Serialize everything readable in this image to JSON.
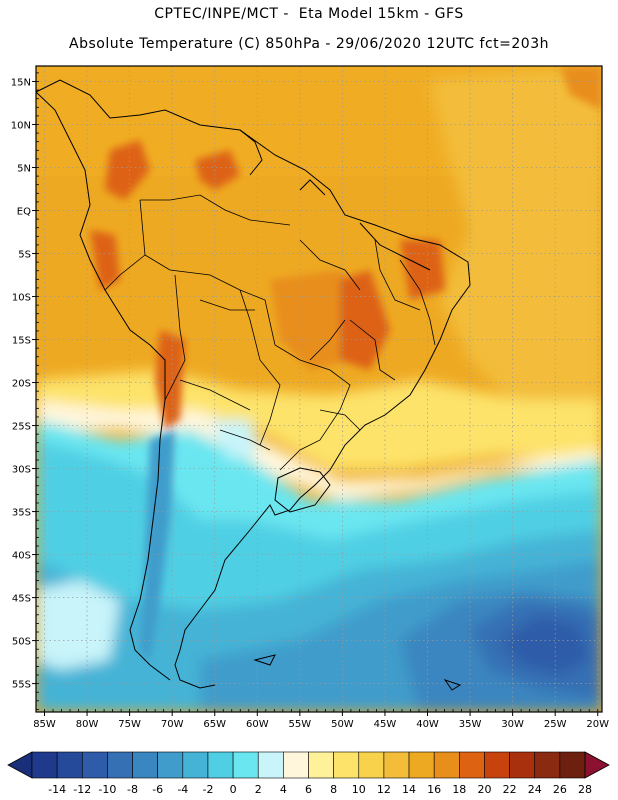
{
  "header": {
    "line1": "CPTEC/INPE/MCT -  Eta Model 15km - GFS",
    "line2": "Absolute Temperature (C) 850hPa - 29/06/2020 12UTC fct=203h"
  },
  "map": {
    "lat_labels": [
      "15N",
      "10N",
      "5N",
      "EQ",
      "5S",
      "10S",
      "15S",
      "20S",
      "25S",
      "30S",
      "35S",
      "40S",
      "45S",
      "50S",
      "55S"
    ],
    "lon_labels": [
      "85W",
      "80W",
      "75W",
      "70W",
      "65W",
      "60W",
      "55W",
      "50W",
      "45W",
      "40W",
      "35W",
      "30W",
      "25W",
      "20W"
    ]
  },
  "colorbar": {
    "labels": [
      "-14",
      "-12",
      "-10",
      "-8",
      "-6",
      "-4",
      "-2",
      "0",
      "2",
      "4",
      "6",
      "8",
      "10",
      "12",
      "14",
      "16",
      "18",
      "20",
      "22",
      "24",
      "26",
      "28"
    ],
    "colors": [
      "#1f3a8c",
      "#264a9a",
      "#2e5ca8",
      "#3570b4",
      "#3a86c0",
      "#3f9ccb",
      "#44b3d6",
      "#50cfe4",
      "#6ae6f0",
      "#c8f4fa",
      "#fff6dc",
      "#fff09a",
      "#fde36a",
      "#f8d24a",
      "#f3bd3a",
      "#eea922",
      "#e88e1a",
      "#dd6212",
      "#c8420e",
      "#a8300c",
      "#8a2a10",
      "#6e2010"
    ],
    "low_color": "#1a2f7a",
    "high_color": "#8c1030"
  }
}
